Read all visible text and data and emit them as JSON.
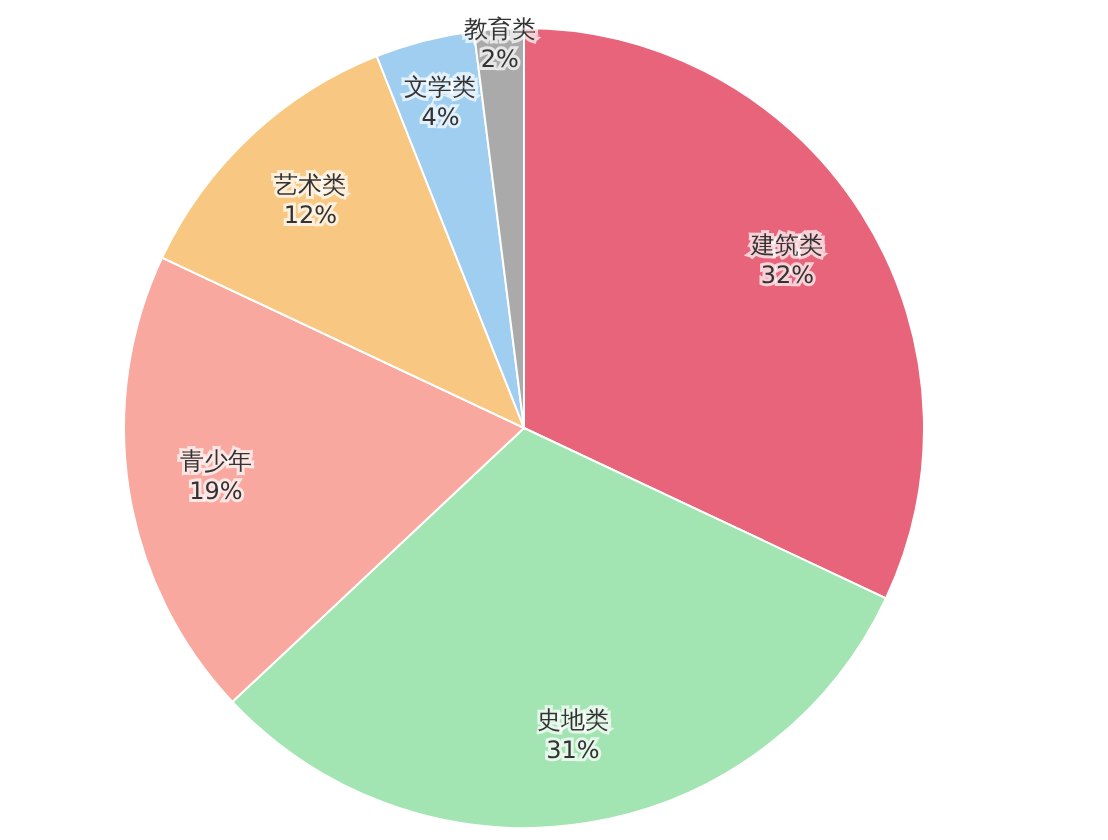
{
  "chart_data": {
    "type": "pie",
    "categories": [
      "建筑类",
      "史地类",
      "青少年",
      "艺术类",
      "文学类",
      "教育类"
    ],
    "values": [
      32,
      31,
      19,
      12,
      4,
      2
    ],
    "colors": [
      "#e8647a",
      "#a3e4b3",
      "#f9a8a0",
      "#f8c882",
      "#9fcef0",
      "#aaaaaa"
    ],
    "value_labels": [
      "32%",
      "31%",
      "19%",
      "12%",
      "4%",
      "2%"
    ]
  }
}
